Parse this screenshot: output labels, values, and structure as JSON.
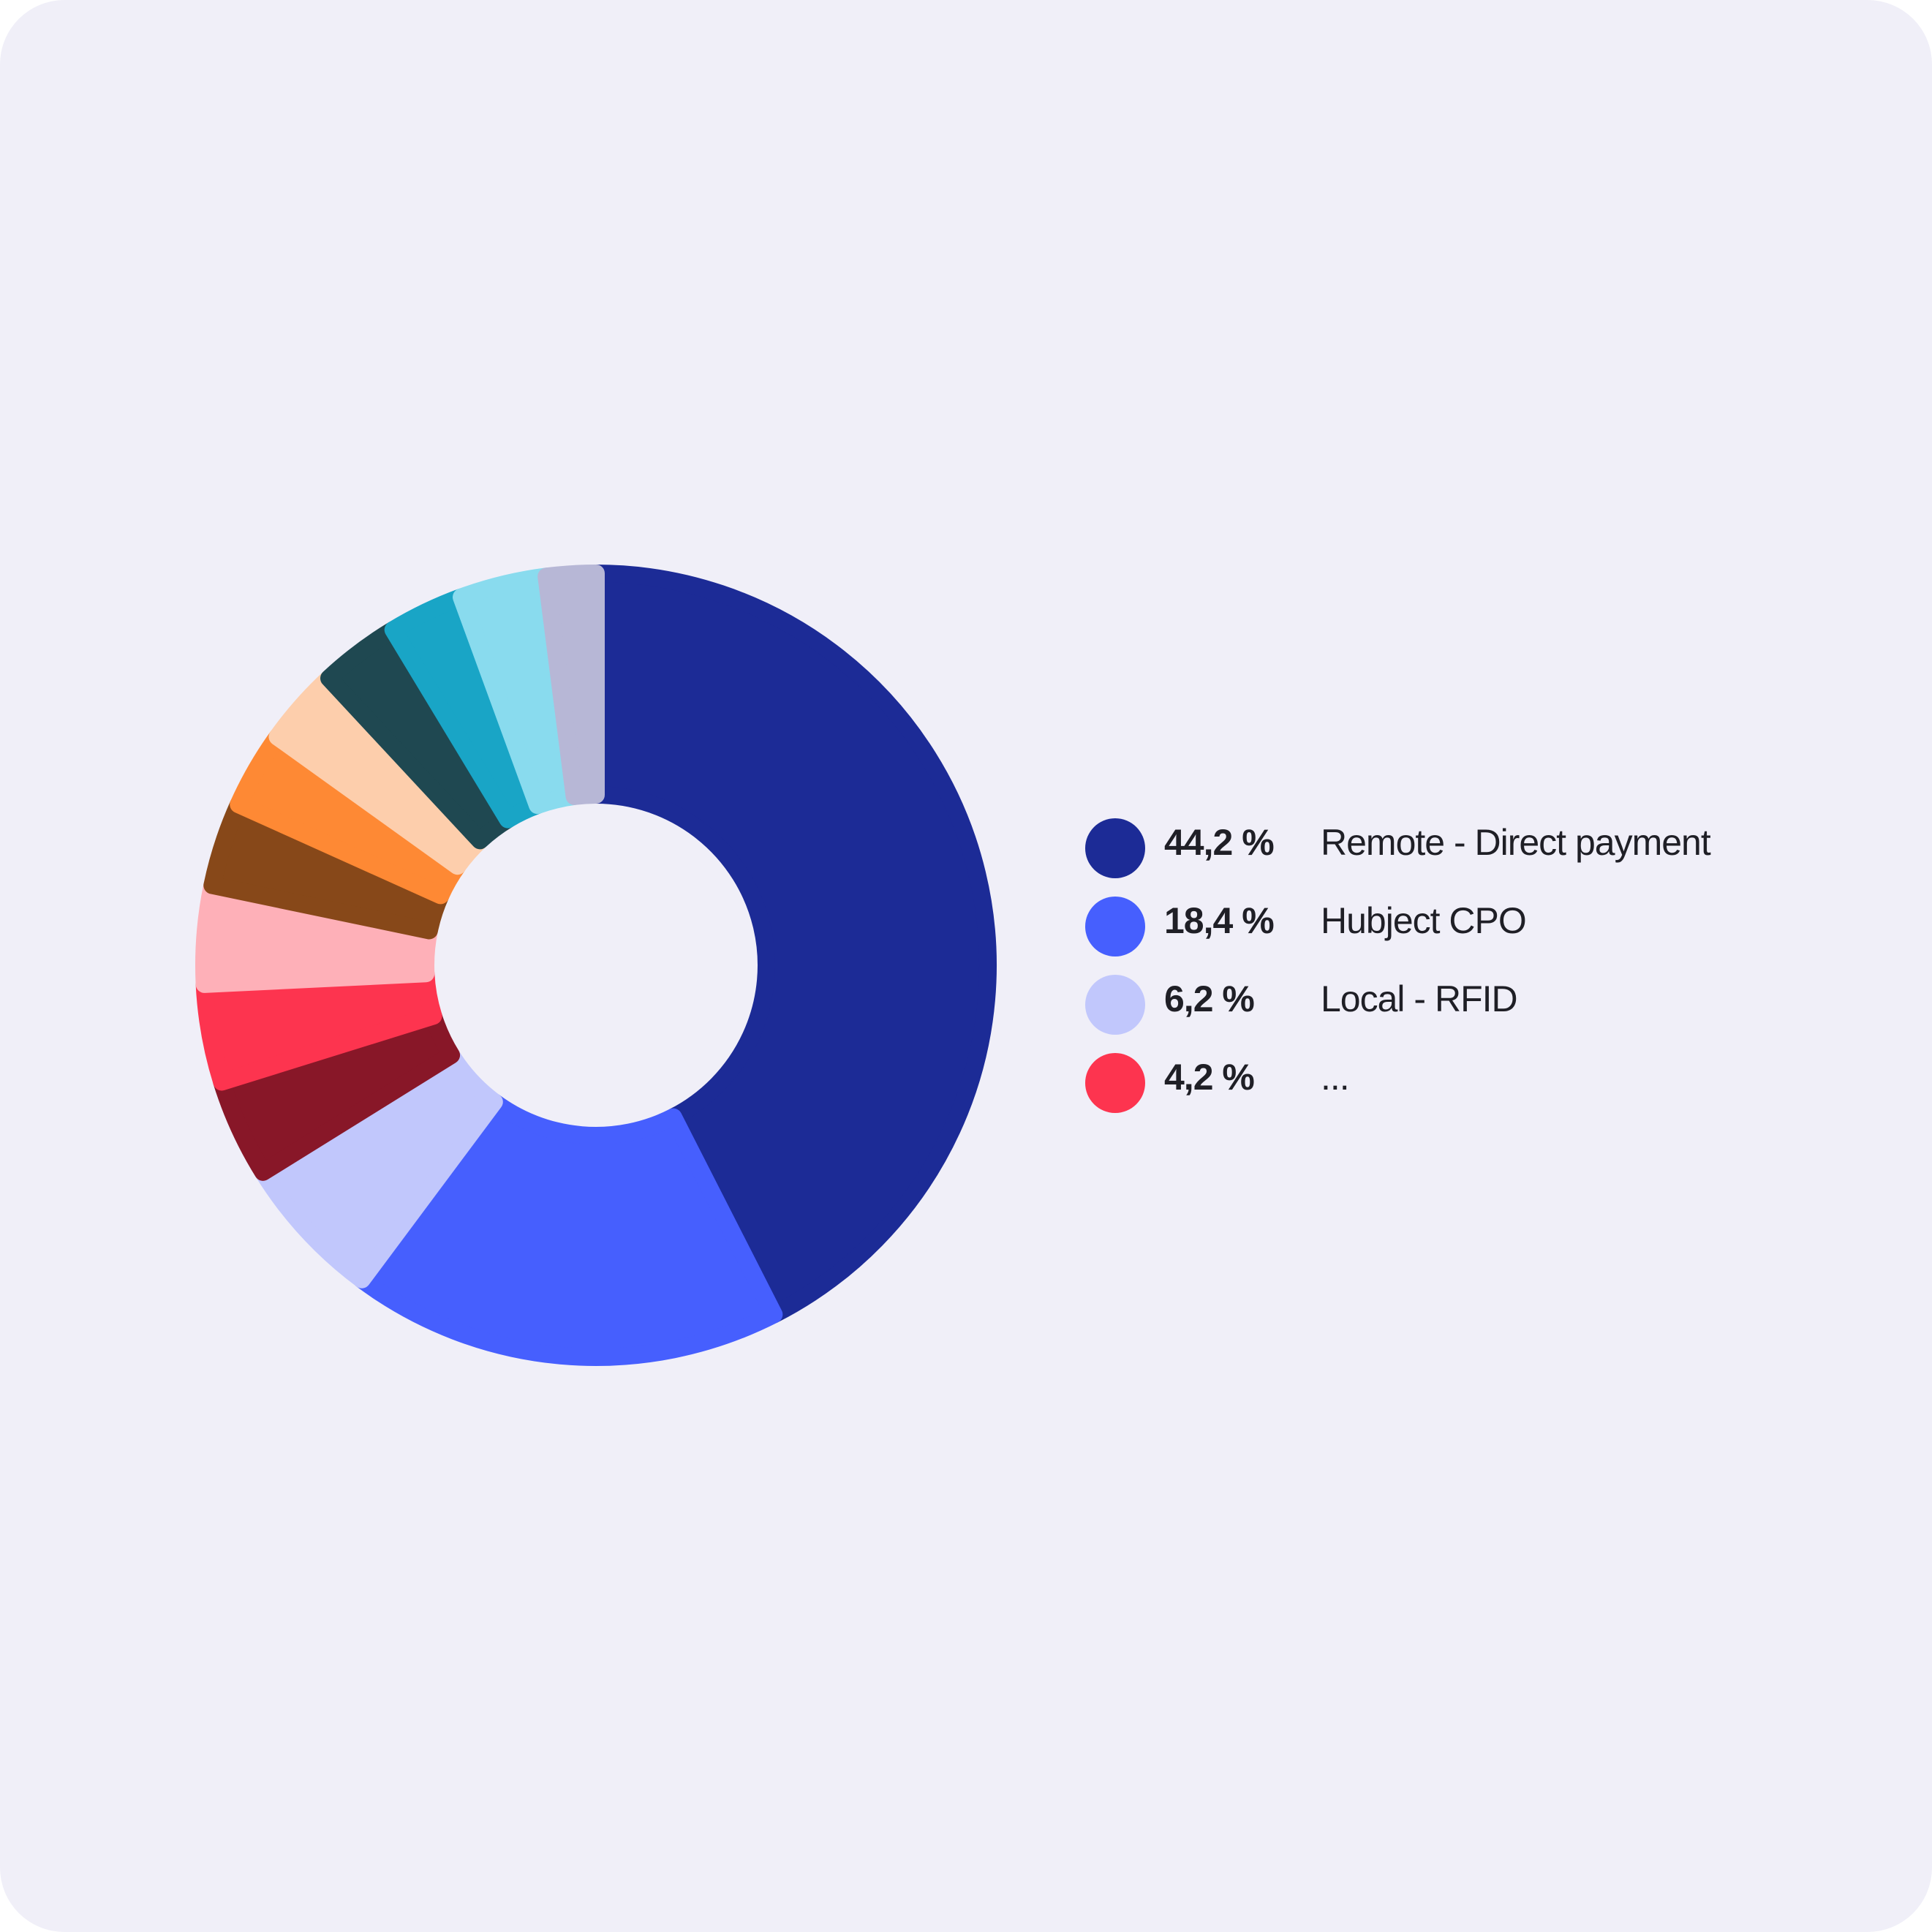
{
  "chart_data": {
    "type": "pie",
    "style": "donut",
    "legend_position": "right",
    "slices": [
      {
        "value": 44.2,
        "color": "#1c2b96"
      },
      {
        "value": 18.4,
        "color": "#465ffe"
      },
      {
        "value": 6.2,
        "color": "#c1c7fc"
      },
      {
        "value": 4.2,
        "color": "#881728"
      },
      {
        "value": 4.2,
        "color": "#fd344f"
      },
      {
        "value": 4.2,
        "color": "#feb0b8"
      },
      {
        "value": 3.6,
        "color": "#874819"
      },
      {
        "value": 3.3,
        "color": "#fe8934"
      },
      {
        "value": 3.3,
        "color": "#fdceac"
      },
      {
        "value": 3.4,
        "color": "#1f4851"
      },
      {
        "value": 3.2,
        "color": "#19a5c6"
      },
      {
        "value": 3.7,
        "color": "#89dbee"
      },
      {
        "value": 2.1,
        "color": "#b7b7d6"
      }
    ]
  },
  "legend": {
    "items": [
      {
        "value": "44,2 %",
        "label": "Remote - Direct payment",
        "color": "#1c2b96"
      },
      {
        "value": "18,4 %",
        "label": "Hubject CPO",
        "color": "#465ffe"
      },
      {
        "value": "6,2 %",
        "label": "Local - RFID",
        "color": "#c1c7fc"
      },
      {
        "value": "4,2 %",
        "label": "...",
        "color": "#fd344f"
      }
    ]
  }
}
